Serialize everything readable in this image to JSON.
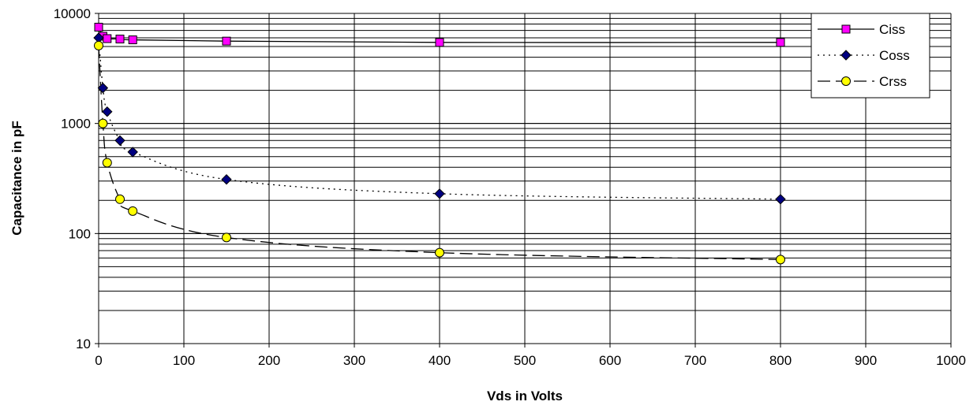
{
  "chart_data": {
    "type": "scatter",
    "title": "",
    "xlabel": "Vds in Volts",
    "ylabel": "Capacitance in pF",
    "xlim": [
      0,
      1000
    ],
    "ylim": [
      10,
      10000
    ],
    "yscale": "log",
    "grid": true,
    "legend_position": "top-right",
    "x_ticks": [
      "0",
      "100",
      "200",
      "300",
      "400",
      "500",
      "600",
      "700",
      "800",
      "900",
      "1000"
    ],
    "y_ticks": [
      "10",
      "100",
      "1000",
      "10000"
    ],
    "series": [
      {
        "name": "Ciss",
        "line": "solid",
        "marker": "square",
        "marker_color": "#ff00ff",
        "x": [
          0,
          5,
          10,
          25,
          40,
          150,
          400,
          800
        ],
        "y": [
          7500,
          6200,
          5900,
          5850,
          5750,
          5600,
          5450,
          5450
        ]
      },
      {
        "name": "Coss",
        "line": "dotted",
        "marker": "diamond",
        "marker_color": "#000080",
        "x": [
          0,
          5,
          10,
          25,
          40,
          150,
          400,
          800
        ],
        "y": [
          6000,
          2100,
          1280,
          700,
          550,
          310,
          230,
          205
        ]
      },
      {
        "name": "Crss",
        "line": "dashed",
        "marker": "circle",
        "marker_color": "#ffff00",
        "x": [
          0,
          5,
          10,
          25,
          40,
          150,
          400,
          800
        ],
        "y": [
          5100,
          1000,
          440,
          205,
          160,
          92,
          67,
          58
        ]
      }
    ]
  }
}
